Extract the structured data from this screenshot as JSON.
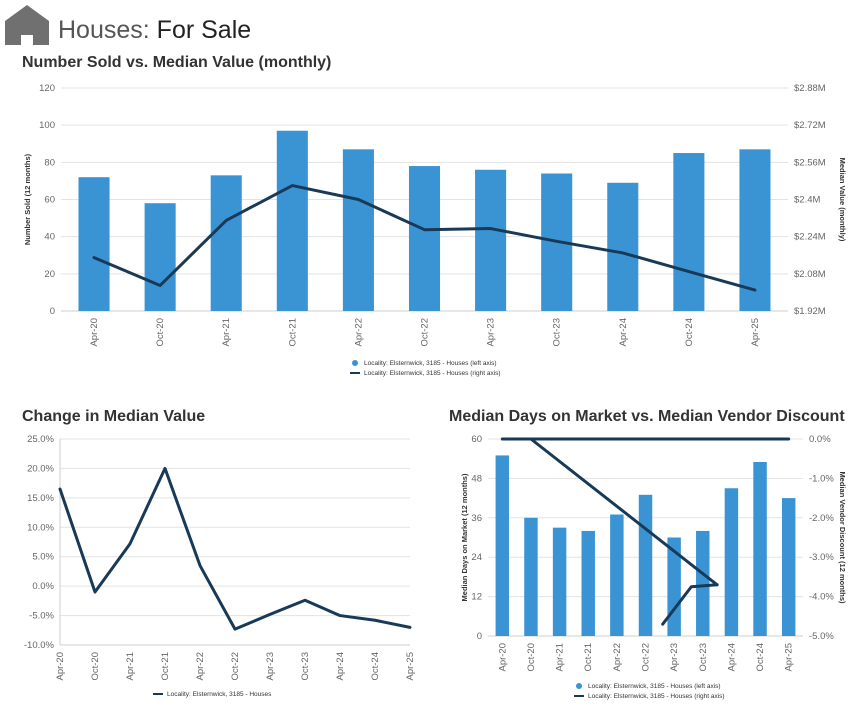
{
  "header": {
    "title_light": "Houses:",
    "title_strong": "For Sale",
    "icon": "house-icon"
  },
  "colors": {
    "bar": "#3a94d4",
    "line": "#183a57",
    "grid": "#e3e3e3"
  },
  "chart_data": [
    {
      "id": "sold-vs-value",
      "type": "bar",
      "title": "Number Sold vs. Median Value (monthly)",
      "categories": [
        "Apr-20",
        "Oct-20",
        "Apr-21",
        "Oct-21",
        "Apr-22",
        "Oct-22",
        "Apr-23",
        "Oct-23",
        "Apr-24",
        "Oct-24",
        "Apr-25"
      ],
      "series": [
        {
          "name": "Locality: Elsternwick, 3185 - Houses (left axis)",
          "type": "bar",
          "axis": "left",
          "values": [
            72,
            58,
            73,
            97,
            87,
            78,
            76,
            74,
            69,
            85,
            87
          ]
        },
        {
          "name": "Locality: Elsternwick, 3185 - Houses (right axis)",
          "type": "line",
          "axis": "right",
          "values": [
            2.15,
            2.03,
            2.31,
            2.46,
            2.4,
            2.27,
            2.275,
            2.22,
            2.17,
            2.09,
            2.01
          ]
        }
      ],
      "ylabel": "Number Sold (12 months)",
      "y2label": "Median Value (monthly)",
      "ylim": [
        0,
        120
      ],
      "yticks": [
        0,
        20,
        40,
        60,
        80,
        100,
        120
      ],
      "ytick_labels": [
        "0",
        "20",
        "40",
        "60",
        "80",
        "100",
        "120"
      ],
      "y2lim": [
        1.92,
        2.88
      ],
      "y2ticks": [
        1.92,
        2.08,
        2.24,
        2.4,
        2.56,
        2.72,
        2.88
      ],
      "y2tick_labels": [
        "$1.92M",
        "$2.08M",
        "$2.24M",
        "$2.4M",
        "$2.56M",
        "$2.72M",
        "$2.88M"
      ],
      "legend": "bottom-center"
    },
    {
      "id": "change-median",
      "type": "line",
      "title": "Change in Median Value",
      "categories": [
        "Apr-20",
        "Oct-20",
        "Apr-21",
        "Oct-21",
        "Apr-22",
        "Oct-22",
        "Apr-23",
        "Oct-23",
        "Apr-24",
        "Oct-24",
        "Apr-25"
      ],
      "series": [
        {
          "name": "Locality: Elsternwick, 3185 - Houses",
          "type": "line",
          "values": [
            16.5,
            -1,
            7.2,
            20,
            3.5,
            -7.3,
            -4.8,
            -2.4,
            -5,
            -5.8,
            -7
          ]
        }
      ],
      "ylim": [
        -10,
        25
      ],
      "yticks": [
        -10,
        -5,
        0,
        5,
        10,
        15,
        20,
        25
      ],
      "ytick_labels": [
        "-10.0%",
        "-5.0%",
        "0.0%",
        "5.0%",
        "10.0%",
        "15.0%",
        "20.0%",
        "25.0%"
      ],
      "legend": "bottom-center"
    },
    {
      "id": "days-vs-discount",
      "type": "bar",
      "title": "Median Days on Market vs. Median Vendor Discount",
      "categories": [
        "Apr-20",
        "Oct-20",
        "Apr-21",
        "Oct-21",
        "Apr-22",
        "Oct-22",
        "Apr-23",
        "Oct-23",
        "Apr-24",
        "Oct-24",
        "Apr-25"
      ],
      "series": [
        {
          "name": "Locality: Elsternwick, 3185 - Houses (left axis)",
          "type": "bar",
          "axis": "left",
          "values": [
            55,
            36,
            33,
            32,
            37,
            43,
            30,
            32,
            45,
            53,
            42
          ]
        },
        {
          "name": "Locality: Elsternwick, 3185 - Houses (right axis)",
          "type": "line",
          "axis": "right",
          "values": [
            0,
            0,
            0,
            0,
            0,
            0,
            0,
            0,
            0,
            0,
            0
          ]
        },
        {
          "name": "Locality: Elsternwick, 3185 - Houses (right axis)",
          "type": "line",
          "axis": "right",
          "x": [
            1,
            7.5
          ],
          "values": [
            0,
            -3.7
          ]
        },
        {
          "name": "Locality: Elsternwick, 3185 - Houses (right axis)",
          "type": "line",
          "axis": "right",
          "x": [
            5.6,
            6.6,
            7.5
          ],
          "values": [
            -4.7,
            -3.75,
            -3.7
          ]
        }
      ],
      "ylabel": "Median Days on Market (12 months)",
      "y2label": "Median Vendor Discount (12 months)",
      "ylim": [
        0,
        60
      ],
      "yticks": [
        0,
        12,
        24,
        36,
        48,
        60
      ],
      "ytick_labels": [
        "0",
        "12",
        "24",
        "36",
        "48",
        "60"
      ],
      "y2lim": [
        -5,
        0
      ],
      "y2ticks": [
        -5,
        -4,
        -3,
        -2,
        -1,
        0
      ],
      "y2tick_labels": [
        "-5.0%",
        "-4.0%",
        "-3.0%",
        "-2.0%",
        "-1.0%",
        "0.0%"
      ],
      "legend": "bottom-center"
    }
  ]
}
